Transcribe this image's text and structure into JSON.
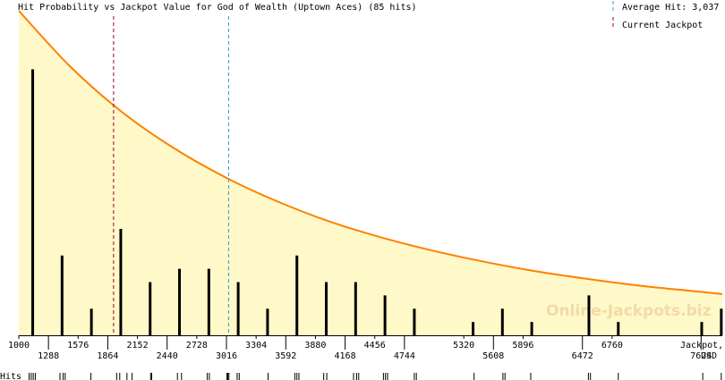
{
  "chart_data": {
    "type": "bar",
    "title": "Hit Probability vs Jackpot Value for God of Wealth (Uptown Aces) (85 hits)",
    "xlabel": "Jackpot, USD",
    "xlabel_line1": "Jackpot,",
    "xlabel_line2": "USD",
    "hits_label": "Hits",
    "average_label": "Average Hit: 3,037",
    "current_label": "Current Jackpot",
    "watermark": "Online-Jackpots.biz",
    "xlim": [
      1000,
      7830
    ],
    "ylim": [
      0,
      12
    ],
    "x_ticks_upper": [
      1000,
      1576,
      2152,
      2728,
      3304,
      3880,
      4456,
      5320,
      5896,
      6760
    ],
    "x_ticks_lower": [
      1288,
      1864,
      2440,
      3016,
      3592,
      4168,
      4744,
      5608,
      6472,
      7624
    ],
    "average_hit": 3037,
    "current_jackpot": 1920,
    "bars": {
      "x": [
        1135,
        1420,
        1705,
        1990,
        2275,
        2560,
        2845,
        3130,
        3415,
        3700,
        3985,
        4270,
        4555,
        4840,
        5410,
        5695,
        5980,
        6535,
        6820,
        7630,
        7820
      ],
      "values": [
        10,
        3,
        1,
        4,
        2,
        2.5,
        2.5,
        2,
        1,
        3,
        2,
        2,
        1.5,
        1,
        0.5,
        1,
        0.5,
        1.5,
        0.5,
        0.5,
        1
      ]
    },
    "curve": {
      "x": [
        1000,
        1500,
        2000,
        2500,
        3000,
        3500,
        4000,
        4500,
        5000,
        5500,
        6000,
        6500,
        7000,
        7500,
        7830
      ],
      "values": [
        12.2,
        10.1,
        8.4,
        7.05,
        5.95,
        5.05,
        4.3,
        3.7,
        3.2,
        2.78,
        2.42,
        2.13,
        1.88,
        1.68,
        1.55
      ]
    },
    "hits_rug": [
      1100,
      1120,
      1140,
      1160,
      1400,
      1430,
      1450,
      1700,
      1950,
      1980,
      2050,
      2100,
      2280,
      2290,
      2540,
      2580,
      2830,
      2850,
      3020,
      3030,
      3040,
      3120,
      3140,
      3420,
      3680,
      3700,
      3720,
      3960,
      3990,
      4250,
      4280,
      4300,
      4540,
      4560,
      4580,
      4840,
      4860,
      5420,
      5700,
      5720,
      5970,
      6530,
      6550,
      6820,
      7640,
      7820
    ],
    "colors": {
      "area_fill": "#fff8c8",
      "curve": "#ff8000",
      "bars": "#000000",
      "average_line": "#3399cc",
      "current_line": "#990033"
    }
  }
}
